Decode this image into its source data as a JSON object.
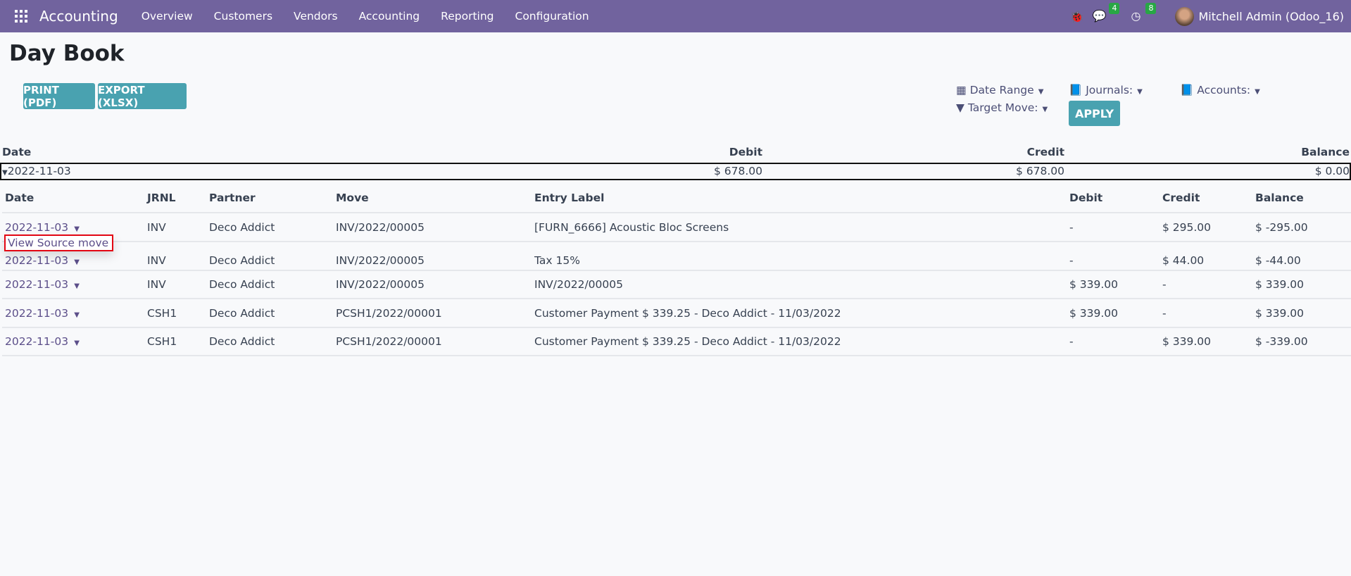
{
  "navbar": {
    "app": "Accounting",
    "menu": [
      "Overview",
      "Customers",
      "Vendors",
      "Accounting",
      "Reporting",
      "Configuration"
    ],
    "messages_count": "4",
    "activities_count": "8",
    "user": "Mitchell Admin (Odoo_16)",
    "color": "#71639e"
  },
  "page": {
    "title": "Day Book",
    "print_label": "PRINT (PDF)",
    "export_label": "EXPORT (XLSX)"
  },
  "filters": {
    "date_range": "Date Range",
    "journals": "Journals:",
    "accounts": "Accounts:",
    "target_move": "Target Move:",
    "apply": "APPLY"
  },
  "summary": {
    "headers": {
      "date": "Date",
      "debit": "Debit",
      "credit": "Credit",
      "balance": "Balance"
    },
    "group": {
      "date": "2022-11-03",
      "debit": "$ 678.00",
      "credit": "$ 678.00",
      "balance": "$ 0.00"
    }
  },
  "lines": {
    "headers": [
      "Date",
      "JRNL",
      "Partner",
      "Move",
      "Entry Label",
      "Debit",
      "Credit",
      "Balance"
    ],
    "rows": [
      [
        "2022-11-03",
        "INV",
        "Deco Addict",
        "INV/2022/00005",
        "[FURN_6666] Acoustic Bloc Screens",
        "-",
        "$ 295.00",
        "$ -295.00"
      ],
      [
        "2022-11-03",
        "INV",
        "Deco Addict",
        "INV/2022/00005",
        "Tax 15%",
        "-",
        "$ 44.00",
        "$ -44.00"
      ],
      [
        "2022-11-03",
        "INV",
        "Deco Addict",
        "INV/2022/00005",
        "INV/2022/00005",
        "$ 339.00",
        "-",
        "$ 339.00"
      ],
      [
        "2022-11-03",
        "CSH1",
        "Deco Addict",
        "PCSH1/2022/00001",
        "Customer Payment $ 339.25 - Deco Addict - 11/03/2022",
        "$ 339.00",
        "-",
        "$ 339.00"
      ],
      [
        "2022-11-03",
        "CSH1",
        "Deco Addict",
        "PCSH1/2022/00001",
        "Customer Payment $ 339.25 - Deco Addict - 11/03/2022",
        "-",
        "$ 339.00",
        "$ -339.00"
      ]
    ]
  },
  "popup": {
    "label": "View Source move"
  }
}
